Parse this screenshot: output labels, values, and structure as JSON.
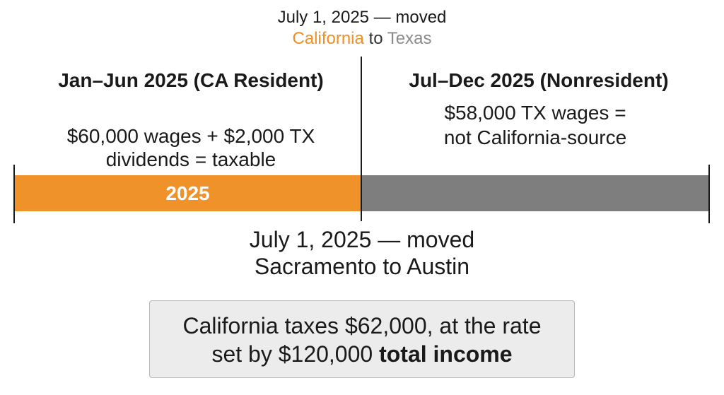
{
  "move_caption_top": {
    "line1": "July 1, 2025 — moved",
    "from_state": "California",
    "to_word": "to",
    "to_state": "Texas"
  },
  "resident_period": {
    "heading": "Jan–Jun 2025 (CA Resident)",
    "detail_line1": "$60,000 wages + $2,000 TX",
    "detail_line2": "dividends = taxable"
  },
  "nonresident_period": {
    "heading": "Jul–Dec 2025 (Nonresident)",
    "detail_line1": "$58,000 TX wages =",
    "detail_line2": "not California-source"
  },
  "timeline": {
    "year_label": "2025"
  },
  "move_caption_bottom": {
    "line1": "July 1, 2025 — moved",
    "line2": "Sacramento to Austin"
  },
  "summary": {
    "line1": "California taxes $62,000, at the rate",
    "line2_prefix": "set by $120,000",
    "line2_bold": "total income"
  },
  "colors": {
    "resident_bar": "#ef922a",
    "nonresident_bar": "#7e7e7e",
    "california_text": "#ee9026",
    "texas_text": "#8b8b8b",
    "summary_box_bg": "#ececec"
  }
}
